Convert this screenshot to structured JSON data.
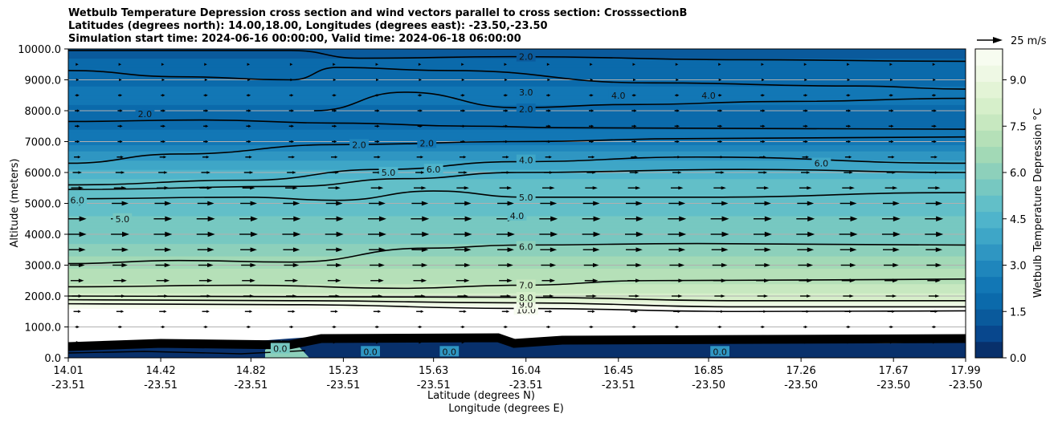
{
  "chart_data": {
    "type": "contour",
    "title_lines": [
      "Wetbulb Temperature Depression cross section and wind vectors parallel to cross section: CrosssectionB",
      "Latitudes (degrees north): 14.00,18.00, Longitudes (degrees east): -23.50,-23.50",
      "Simulation start time: 2024-06-16 00:00:00, Valid time: 2024-06-18 06:00:00"
    ],
    "ylabel": "Altitude (meters)",
    "xlabel_lat": "Latitude (degrees N)",
    "xlabel_lon": "Longitude (degrees E)",
    "ylim": [
      0,
      10000
    ],
    "y_ticks": [
      0,
      1000,
      2000,
      3000,
      4000,
      5000,
      6000,
      7000,
      8000,
      9000,
      10000
    ],
    "y_tick_labels": [
      "0.0",
      "1000.0",
      "2000.0",
      "3000.0",
      "4000.0",
      "5000.0",
      "6000.0",
      "7000.0",
      "8000.0",
      "9000.0",
      "10000.0"
    ],
    "xlim": [
      14.01,
      17.99
    ],
    "x_ticks": [
      {
        "lat": "14.01",
        "lon": "-23.51"
      },
      {
        "lat": "14.42",
        "lon": "-23.51"
      },
      {
        "lat": "14.82",
        "lon": "-23.51"
      },
      {
        "lat": "15.23",
        "lon": "-23.51"
      },
      {
        "lat": "15.63",
        "lon": "-23.51"
      },
      {
        "lat": "16.04",
        "lon": "-23.51"
      },
      {
        "lat": "16.45",
        "lon": "-23.51"
      },
      {
        "lat": "16.85",
        "lon": "-23.50"
      },
      {
        "lat": "17.26",
        "lon": "-23.50"
      },
      {
        "lat": "17.67",
        "lon": "-23.50"
      },
      {
        "lat": "17.99",
        "lon": "-23.50"
      }
    ],
    "colorbar": {
      "label": "Wetbulb Temperature Depression °C",
      "range": [
        0,
        10
      ],
      "tick_values": [
        0,
        1.5,
        3,
        4.5,
        6,
        7.5,
        9
      ],
      "tick_labels": [
        "0.0",
        "1.5",
        "3.0",
        "4.5",
        "6.0",
        "7.5",
        "9.0"
      ],
      "colors": [
        "#08306b",
        "#08478d",
        "#0a5a9c",
        "#0b6aab",
        "#1277b5",
        "#1f86bc",
        "#2f96c2",
        "#3ea6c7",
        "#4fb4cb",
        "#62bfc8",
        "#77c8c1",
        "#8dd0bb",
        "#a2d9b6",
        "#b5e0b8",
        "#c7e8c0",
        "#d6efca",
        "#e3f4d6",
        "#eef8e4",
        "#f7fcf0"
      ]
    },
    "wind_reference": {
      "label": "25 m/s",
      "speed": 25
    },
    "depression_profile": [
      {
        "alt": 100,
        "value": 1.2
      },
      {
        "alt": 500,
        "value": 10.0
      },
      {
        "alt": 1000,
        "value": 10.0
      },
      {
        "alt": 1600,
        "value": 10.0
      },
      {
        "alt": 1800,
        "value": 9.0
      },
      {
        "alt": 2000,
        "value": 8.0
      },
      {
        "alt": 2300,
        "value": 7.5
      },
      {
        "alt": 2600,
        "value": 7.0
      },
      {
        "alt": 3000,
        "value": 6.8
      },
      {
        "alt": 3500,
        "value": 6.0
      },
      {
        "alt": 4000,
        "value": 5.5
      },
      {
        "alt": 4500,
        "value": 5.3
      },
      {
        "alt": 5000,
        "value": 5.0
      },
      {
        "alt": 5500,
        "value": 5.0
      },
      {
        "alt": 6000,
        "value": 4.5
      },
      {
        "alt": 6500,
        "value": 3.5
      },
      {
        "alt": 7000,
        "value": 2.5
      },
      {
        "alt": 7500,
        "value": 2.0
      },
      {
        "alt": 8000,
        "value": 2.0
      },
      {
        "alt": 8500,
        "value": 2.3
      },
      {
        "alt": 9000,
        "value": 2.0
      },
      {
        "alt": 9500,
        "value": 1.8
      },
      {
        "alt": 10000,
        "value": 1.3
      }
    ],
    "contours": [
      {
        "level": "10.0",
        "points": [
          [
            14.01,
            1750
          ],
          [
            15.0,
            1720
          ],
          [
            16.0,
            1600
          ],
          [
            17.0,
            1500
          ],
          [
            17.99,
            1520
          ]
        ]
      },
      {
        "level": "9.0",
        "points": [
          [
            14.01,
            1880
          ],
          [
            15.0,
            1850
          ],
          [
            16.0,
            1780
          ],
          [
            17.0,
            1650
          ],
          [
            17.99,
            1650
          ]
        ]
      },
      {
        "level": "8.0",
        "points": [
          [
            14.01,
            2000
          ],
          [
            15.0,
            1980
          ],
          [
            16.0,
            1960
          ],
          [
            17.0,
            1850
          ],
          [
            17.99,
            1850
          ]
        ]
      },
      {
        "level": "7.0",
        "points": [
          [
            14.01,
            2300
          ],
          [
            14.8,
            2350
          ],
          [
            15.5,
            2250
          ],
          [
            16.0,
            2350
          ],
          [
            16.6,
            2500
          ],
          [
            17.3,
            2520
          ],
          [
            17.99,
            2550
          ]
        ]
      },
      {
        "level": "6.0",
        "points": [
          [
            14.01,
            3050
          ],
          [
            14.5,
            3150
          ],
          [
            15.0,
            3100
          ],
          [
            15.6,
            3550
          ],
          [
            16.0,
            3650
          ],
          [
            16.8,
            3700
          ],
          [
            17.99,
            3650
          ]
        ]
      },
      {
        "level": "5.0",
        "points": [
          [
            14.01,
            5150
          ],
          [
            14.8,
            5200
          ],
          [
            15.2,
            5100
          ],
          [
            15.63,
            5400
          ],
          [
            16.04,
            5200
          ],
          [
            16.8,
            5200
          ],
          [
            17.99,
            5350
          ]
        ]
      },
      {
        "level": "5.0",
        "points": [
          [
            14.01,
            5450
          ],
          [
            15.0,
            5550
          ],
          [
            15.5,
            5800
          ],
          [
            16.0,
            6000
          ],
          [
            17.0,
            6100
          ],
          [
            17.99,
            6000
          ]
        ]
      },
      {
        "level": "4.0",
        "points": [
          [
            14.01,
            5600
          ],
          [
            14.8,
            5750
          ],
          [
            15.4,
            6100
          ],
          [
            16.0,
            6350
          ],
          [
            16.8,
            6500
          ],
          [
            17.99,
            6300
          ]
        ]
      },
      {
        "level": "2.0",
        "points": [
          [
            14.01,
            6300
          ],
          [
            14.5,
            6600
          ],
          [
            15.2,
            6900
          ],
          [
            16.0,
            7000
          ],
          [
            16.8,
            7100
          ],
          [
            17.99,
            7150
          ]
        ]
      },
      {
        "level": "2.0",
        "points": [
          [
            14.01,
            7650
          ],
          [
            14.6,
            7700
          ],
          [
            15.2,
            7600
          ],
          [
            15.8,
            7500
          ],
          [
            16.2,
            7450
          ],
          [
            17.99,
            7400
          ]
        ]
      },
      {
        "level": "3.0",
        "points": [
          [
            15.1,
            8000
          ],
          [
            15.5,
            8600
          ],
          [
            16.0,
            8100
          ],
          [
            16.5,
            8200
          ],
          [
            17.2,
            8300
          ],
          [
            17.99,
            8400
          ]
        ]
      },
      {
        "level": "2.0",
        "points": [
          [
            14.01,
            9300
          ],
          [
            14.5,
            9100
          ],
          [
            15.0,
            9000
          ],
          [
            15.2,
            9400
          ],
          [
            15.7,
            9300
          ],
          [
            16.6,
            8900
          ],
          [
            17.5,
            8800
          ],
          [
            17.99,
            8700
          ]
        ]
      },
      {
        "level": "2.0",
        "points": [
          [
            14.01,
            9950
          ],
          [
            15.0,
            9950
          ],
          [
            15.3,
            9700
          ],
          [
            16.0,
            9750
          ],
          [
            17.0,
            9650
          ],
          [
            17.99,
            9600
          ]
        ]
      }
    ],
    "contour_labels": [
      {
        "text": "10.0",
        "lat": 16.04,
        "alt": 1550
      },
      {
        "text": "9.0",
        "lat": 16.04,
        "alt": 1730
      },
      {
        "text": "8.0",
        "lat": 16.04,
        "alt": 1950
      },
      {
        "text": "7.0",
        "lat": 16.04,
        "alt": 2350
      },
      {
        "text": "6.0",
        "lat": 16.04,
        "alt": 3600
      },
      {
        "text": "5.0",
        "lat": 16.04,
        "alt": 5200
      },
      {
        "text": "5.0",
        "lat": 15.43,
        "alt": 6000
      },
      {
        "text": "6.0",
        "lat": 15.63,
        "alt": 6100
      },
      {
        "text": "4.0",
        "lat": 16.04,
        "alt": 6400
      },
      {
        "text": "2.0",
        "lat": 16.04,
        "alt": 8050
      },
      {
        "text": "3.0",
        "lat": 16.04,
        "alt": 8600
      },
      {
        "text": "2.0",
        "lat": 16.04,
        "alt": 9750
      },
      {
        "text": "4.0",
        "lat": 16.45,
        "alt": 8500
      },
      {
        "text": "4.0",
        "lat": 16.85,
        "alt": 8500
      },
      {
        "text": "2.0",
        "lat": 14.35,
        "alt": 7900
      },
      {
        "text": "2.0",
        "lat": 15.3,
        "alt": 6900
      },
      {
        "text": "2.0",
        "lat": 15.6,
        "alt": 6950
      },
      {
        "text": "6.0",
        "lat": 14.05,
        "alt": 5100
      },
      {
        "text": "5.0",
        "lat": 14.25,
        "alt": 4500
      },
      {
        "text": "4.0",
        "lat": 16.0,
        "alt": 4600
      },
      {
        "text": "6.0",
        "lat": 17.35,
        "alt": 6300
      },
      {
        "text": "0.0",
        "lat": 14.95,
        "alt": 300
      },
      {
        "text": "0.0",
        "lat": 15.35,
        "alt": 200
      },
      {
        "text": "0.0",
        "lat": 15.7,
        "alt": 200
      },
      {
        "text": "0.0",
        "lat": 16.9,
        "alt": 200
      }
    ],
    "wind_rows": [
      {
        "alt": 500,
        "speed": 4
      },
      {
        "alt": 1000,
        "speed": 5
      },
      {
        "alt": 1500,
        "speed": 9
      },
      {
        "alt": 2000,
        "speed": 13
      },
      {
        "alt": 2500,
        "speed": 16
      },
      {
        "alt": 3000,
        "speed": 18
      },
      {
        "alt": 3500,
        "speed": 20
      },
      {
        "alt": 4000,
        "speed": 22
      },
      {
        "alt": 4500,
        "speed": 22
      },
      {
        "alt": 5000,
        "speed": 20
      },
      {
        "alt": 5500,
        "speed": 15
      },
      {
        "alt": 6000,
        "speed": 11
      },
      {
        "alt": 6500,
        "speed": 8
      },
      {
        "alt": 7000,
        "speed": 6
      },
      {
        "alt": 7500,
        "speed": 6
      },
      {
        "alt": 8000,
        "speed": 6
      },
      {
        "alt": 8500,
        "speed": 5
      },
      {
        "alt": 9000,
        "speed": 4
      },
      {
        "alt": 9500,
        "speed": 3
      }
    ],
    "wind_columns": [
      14.05,
      14.24,
      14.43,
      14.62,
      14.81,
      15.0,
      15.19,
      15.38,
      15.57,
      15.76,
      15.95,
      16.14,
      16.33,
      16.52,
      16.71,
      16.9,
      17.09,
      17.28,
      17.47,
      17.66,
      17.85
    ]
  }
}
